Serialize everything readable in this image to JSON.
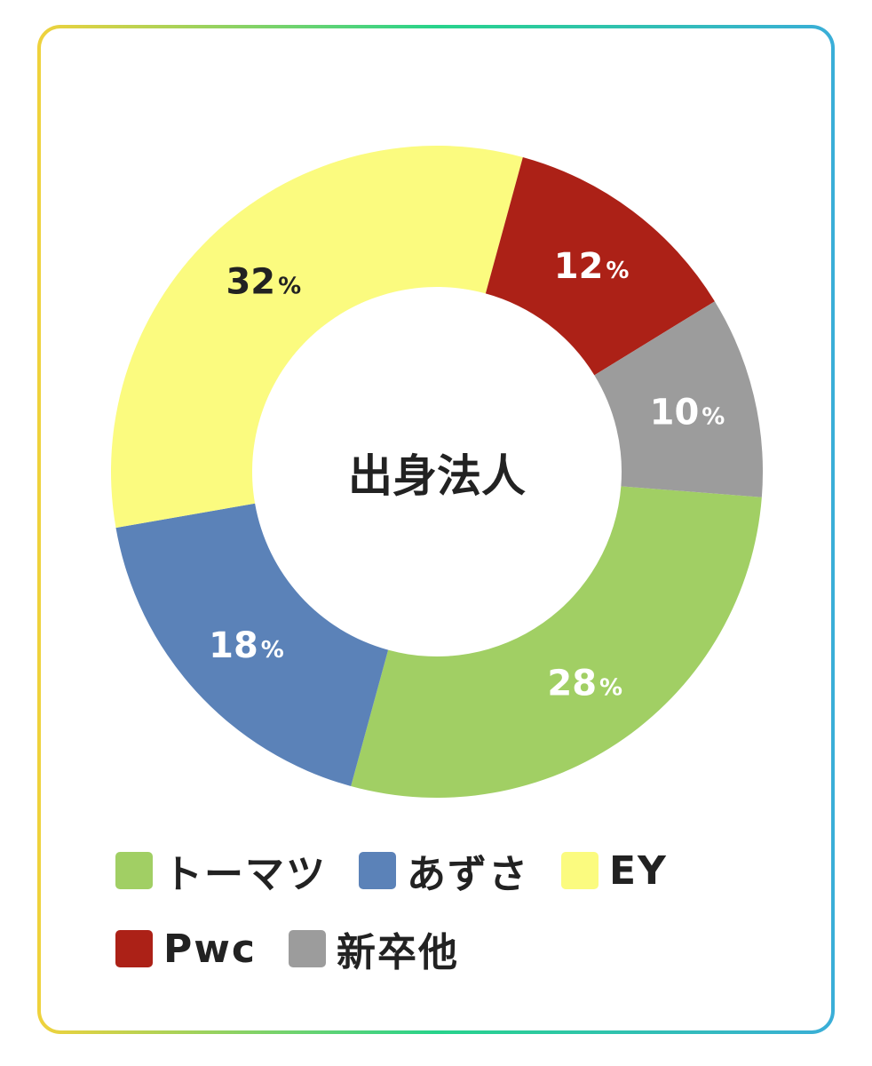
{
  "chart_data": {
    "type": "pie",
    "donut": true,
    "center_label": "出身法人",
    "slices": [
      {
        "label": "トーマツ",
        "value": 28,
        "display": "28",
        "color": "#a1cf64",
        "text_color": "#ffffff"
      },
      {
        "label": "あずさ",
        "value": 18,
        "display": "18",
        "color": "#5b82b8",
        "text_color": "#ffffff"
      },
      {
        "label": "EY",
        "value": 32,
        "display": "32",
        "color": "#fbfb7f",
        "text_color": "#222222"
      },
      {
        "label": "Pwc",
        "value": 12,
        "display": "12",
        "color": "#ac2117",
        "text_color": "#ffffff"
      },
      {
        "label": "新卒他",
        "value": 10,
        "display": "10",
        "color": "#9c9c9c",
        "text_color": "#ffffff"
      }
    ],
    "unit": "%",
    "legend_rows": [
      [
        "トーマツ",
        "あずさ",
        "EY"
      ],
      [
        "Pwc",
        "新卒他"
      ]
    ],
    "legend_position": "bottom"
  }
}
